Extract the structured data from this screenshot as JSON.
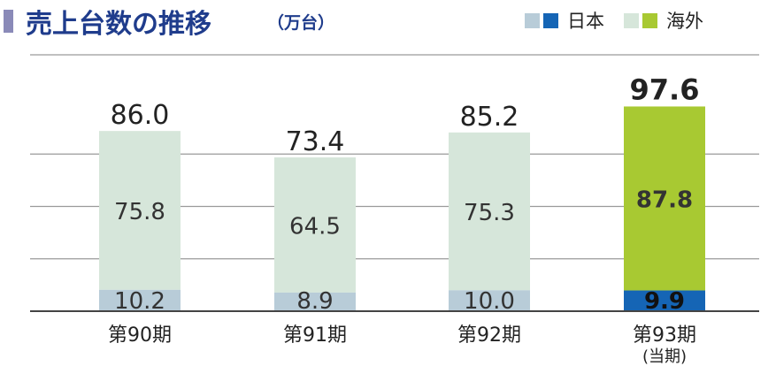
{
  "header": {
    "title": "売上台数の推移",
    "unit": "（万台）"
  },
  "legend": [
    {
      "label": "日本",
      "colors": [
        "#b8ccd8",
        "#1565b5"
      ]
    },
    {
      "label": "海外",
      "colors": [
        "#d6e6da",
        "#a8c932"
      ]
    }
  ],
  "colors": {
    "japan_past": "#b8ccd8",
    "overseas_past": "#d6e6da",
    "japan_current": "#1565b5",
    "overseas_current": "#a8c932",
    "gridline": "#9a9a9a",
    "baseline": "#444444"
  },
  "chart_data": {
    "type": "bar",
    "stacked": true,
    "categories": [
      "第90期",
      "第91期",
      "第92期",
      "第93期"
    ],
    "category_sublabels": [
      "",
      "",
      "",
      "(当期)"
    ],
    "series": [
      {
        "name": "日本",
        "values": [
          10.2,
          8.9,
          10.0,
          9.9
        ],
        "labels": [
          "10.2",
          "8.9",
          "10.0",
          "9.9"
        ]
      },
      {
        "name": "海外",
        "values": [
          75.8,
          64.5,
          75.3,
          87.8
        ],
        "labels": [
          "75.8",
          "64.5",
          "75.3",
          "87.8"
        ]
      }
    ],
    "totals": [
      "86.0",
      "73.4",
      "85.2",
      "97.6"
    ],
    "highlight_index": 3,
    "ylim": [
      0,
      100
    ],
    "grid": true,
    "legend_position": "top-right"
  }
}
